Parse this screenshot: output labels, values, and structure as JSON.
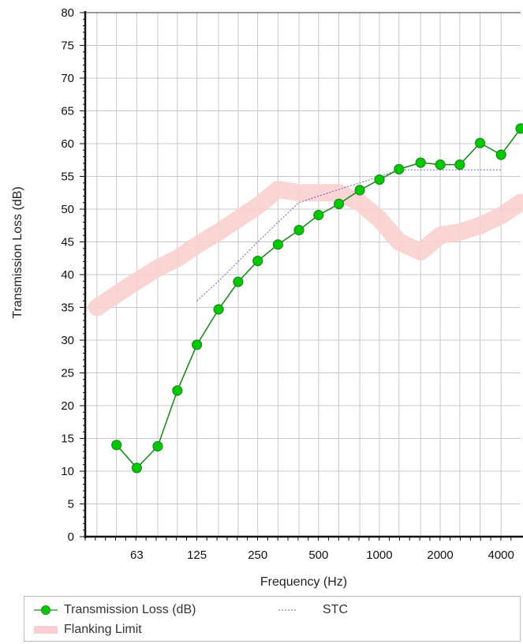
{
  "chart_data": {
    "type": "line",
    "xlabel": "Frequency (Hz)",
    "ylabel": "Transmission Loss (dB)",
    "x_scale": "log",
    "xlim": [
      35,
      5000
    ],
    "ylim": [
      0,
      80
    ],
    "x_ticks": [
      63,
      125,
      250,
      500,
      1000,
      2000,
      4000
    ],
    "x_tick_labels": [
      "63",
      "125",
      "250",
      "500",
      "1000",
      "2000",
      "4000"
    ],
    "y_ticks": [
      0,
      5,
      10,
      15,
      20,
      25,
      30,
      35,
      40,
      45,
      50,
      55,
      60,
      65,
      70,
      75,
      80
    ],
    "grid": true,
    "legend_position": "bottom",
    "series": [
      {
        "name": "Transmission Loss (dB)",
        "color": "#00c800",
        "line_color": "#1f8a1f",
        "x": [
          50,
          63,
          80,
          100,
          125,
          160,
          200,
          250,
          315,
          400,
          500,
          630,
          800,
          1000,
          1250,
          1600,
          2000,
          2500,
          3150,
          4000,
          5000
        ],
        "y": [
          14,
          10.5,
          13.8,
          22.3,
          29.3,
          34.7,
          38.9,
          42.1,
          44.6,
          46.8,
          49.1,
          50.8,
          52.9,
          54.5,
          56.1,
          57.1,
          56.8,
          56.8,
          60.1,
          58.3,
          62.3
        ]
      },
      {
        "name": "STC",
        "color": "#3333cc",
        "x": [
          125,
          160,
          200,
          250,
          315,
          400,
          500,
          630,
          800,
          1000,
          1250,
          1600,
          2000,
          2500,
          3150,
          4000
        ],
        "y": [
          36,
          39,
          42,
          45,
          48,
          51,
          52,
          53,
          54,
          55,
          56,
          56,
          56,
          56,
          56,
          56
        ]
      },
      {
        "name": "Flanking Limit",
        "color": "#fbcfcf",
        "x": [
          40,
          50,
          63,
          80,
          100,
          125,
          160,
          200,
          250,
          315,
          400,
          500,
          630,
          800,
          1000,
          1250,
          1600,
          2000,
          2500,
          3150,
          4000,
          5000
        ],
        "y": [
          35,
          37,
          39,
          41,
          42.5,
          44.5,
          46.5,
          48.5,
          50.5,
          53,
          52.5,
          52.5,
          52.5,
          51,
          48.5,
          45,
          43.5,
          46,
          46.5,
          47.5,
          49,
          51
        ]
      }
    ]
  },
  "legend": {
    "tl_label": "Transmission Loss (dB)",
    "stc_label": "STC",
    "flank_label": "Flanking Limit"
  }
}
